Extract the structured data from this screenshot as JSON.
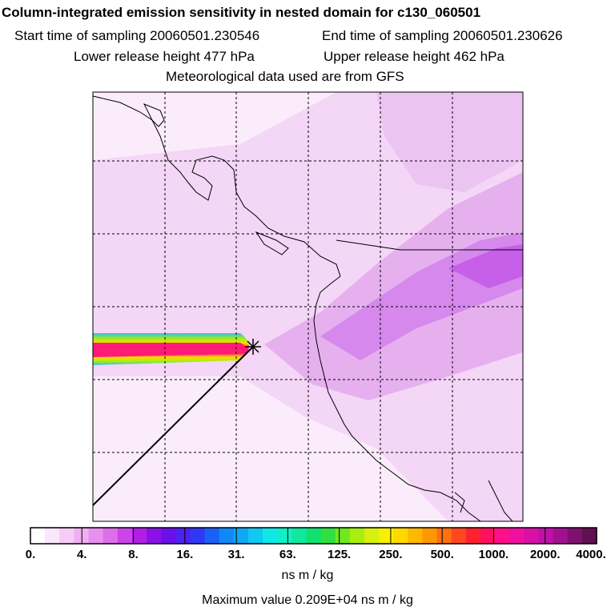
{
  "header": {
    "title": "Column-integrated emission sensitivity in nested domain for c130_060501",
    "start_label": "Start time of sampling 20060501.230546",
    "end_label": "End time of sampling 20060501.230626",
    "lower_label": "Lower release height  477 hPa",
    "upper_label": "Upper release height  462 hPa",
    "met_label": "Meteorological data used are from GFS"
  },
  "legend": {
    "ticks": [
      "0.",
      "4.",
      "8.",
      "16.",
      "31.",
      "63.",
      "125.",
      "250.",
      "500.",
      "1000.",
      "2000.",
      "4000."
    ],
    "colors": [
      "#ffffff",
      "#fbe6fb",
      "#f6ccf6",
      "#f0b0f0",
      "#e890ee",
      "#dd70ea",
      "#cc44e8",
      "#b21ee6",
      "#8a10e6",
      "#6a10ea",
      "#5020f0",
      "#3038f4",
      "#1a60f6",
      "#1088f6",
      "#10a8f4",
      "#10c8f0",
      "#10e8e8",
      "#10f0c8",
      "#10e8a0",
      "#10e070",
      "#30e040",
      "#70e820",
      "#a8ee10",
      "#d8f010",
      "#f8f000",
      "#ffd800",
      "#ffb800",
      "#ff9800",
      "#ff7010",
      "#ff4820",
      "#ff2030",
      "#ff1060",
      "#ff1088",
      "#f010a0",
      "#d810a8",
      "#c010a8",
      "#a01090",
      "#801070",
      "#601050"
    ],
    "units": "ns m / kg",
    "max_label": "Maximum value  0.209E+04 ns m / kg"
  },
  "map": {
    "colors": {
      "light": "#f6dcf8",
      "mid": "#e9b8f0",
      "strong": "#d890ec",
      "plume_core": "#ff1a78",
      "plume_mid": "#ffd800",
      "plume_outer": "#30c0f0"
    }
  }
}
